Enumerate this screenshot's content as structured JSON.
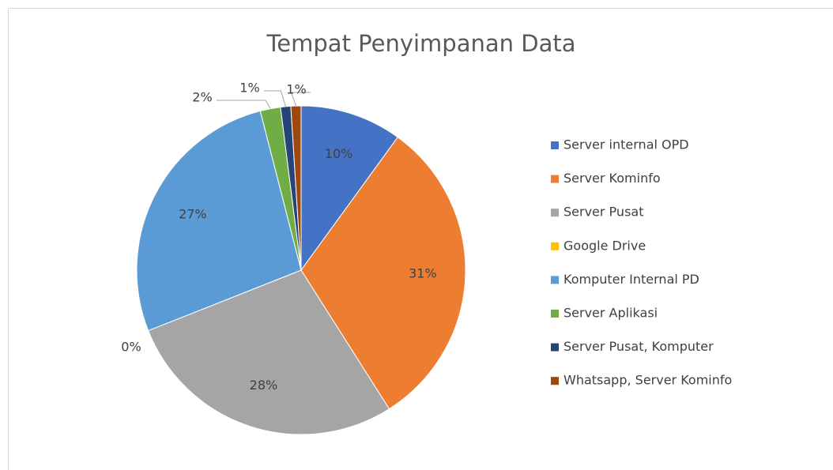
{
  "chart_data": {
    "type": "pie",
    "title": "Tempat Penyimpanan Data",
    "categories": [
      "Server internal OPD",
      "Server Kominfo",
      "Server Pusat",
      "Google Drive",
      "Komputer Internal PD",
      "Server Aplikasi",
      "Server Pusat, Komputer",
      "Whatsapp, Server Kominfo"
    ],
    "values": [
      10,
      31,
      28,
      0,
      27,
      2,
      1,
      1
    ],
    "value_labels": [
      "10%",
      "31%",
      "28%",
      "0%",
      "27%",
      "2%",
      "1%",
      "1%"
    ],
    "colors": [
      "#4472c4",
      "#ed7d31",
      "#a5a5a5",
      "#ffc000",
      "#5b9bd5",
      "#70ad47",
      "#264478",
      "#9e480e"
    ],
    "legend": "right"
  }
}
